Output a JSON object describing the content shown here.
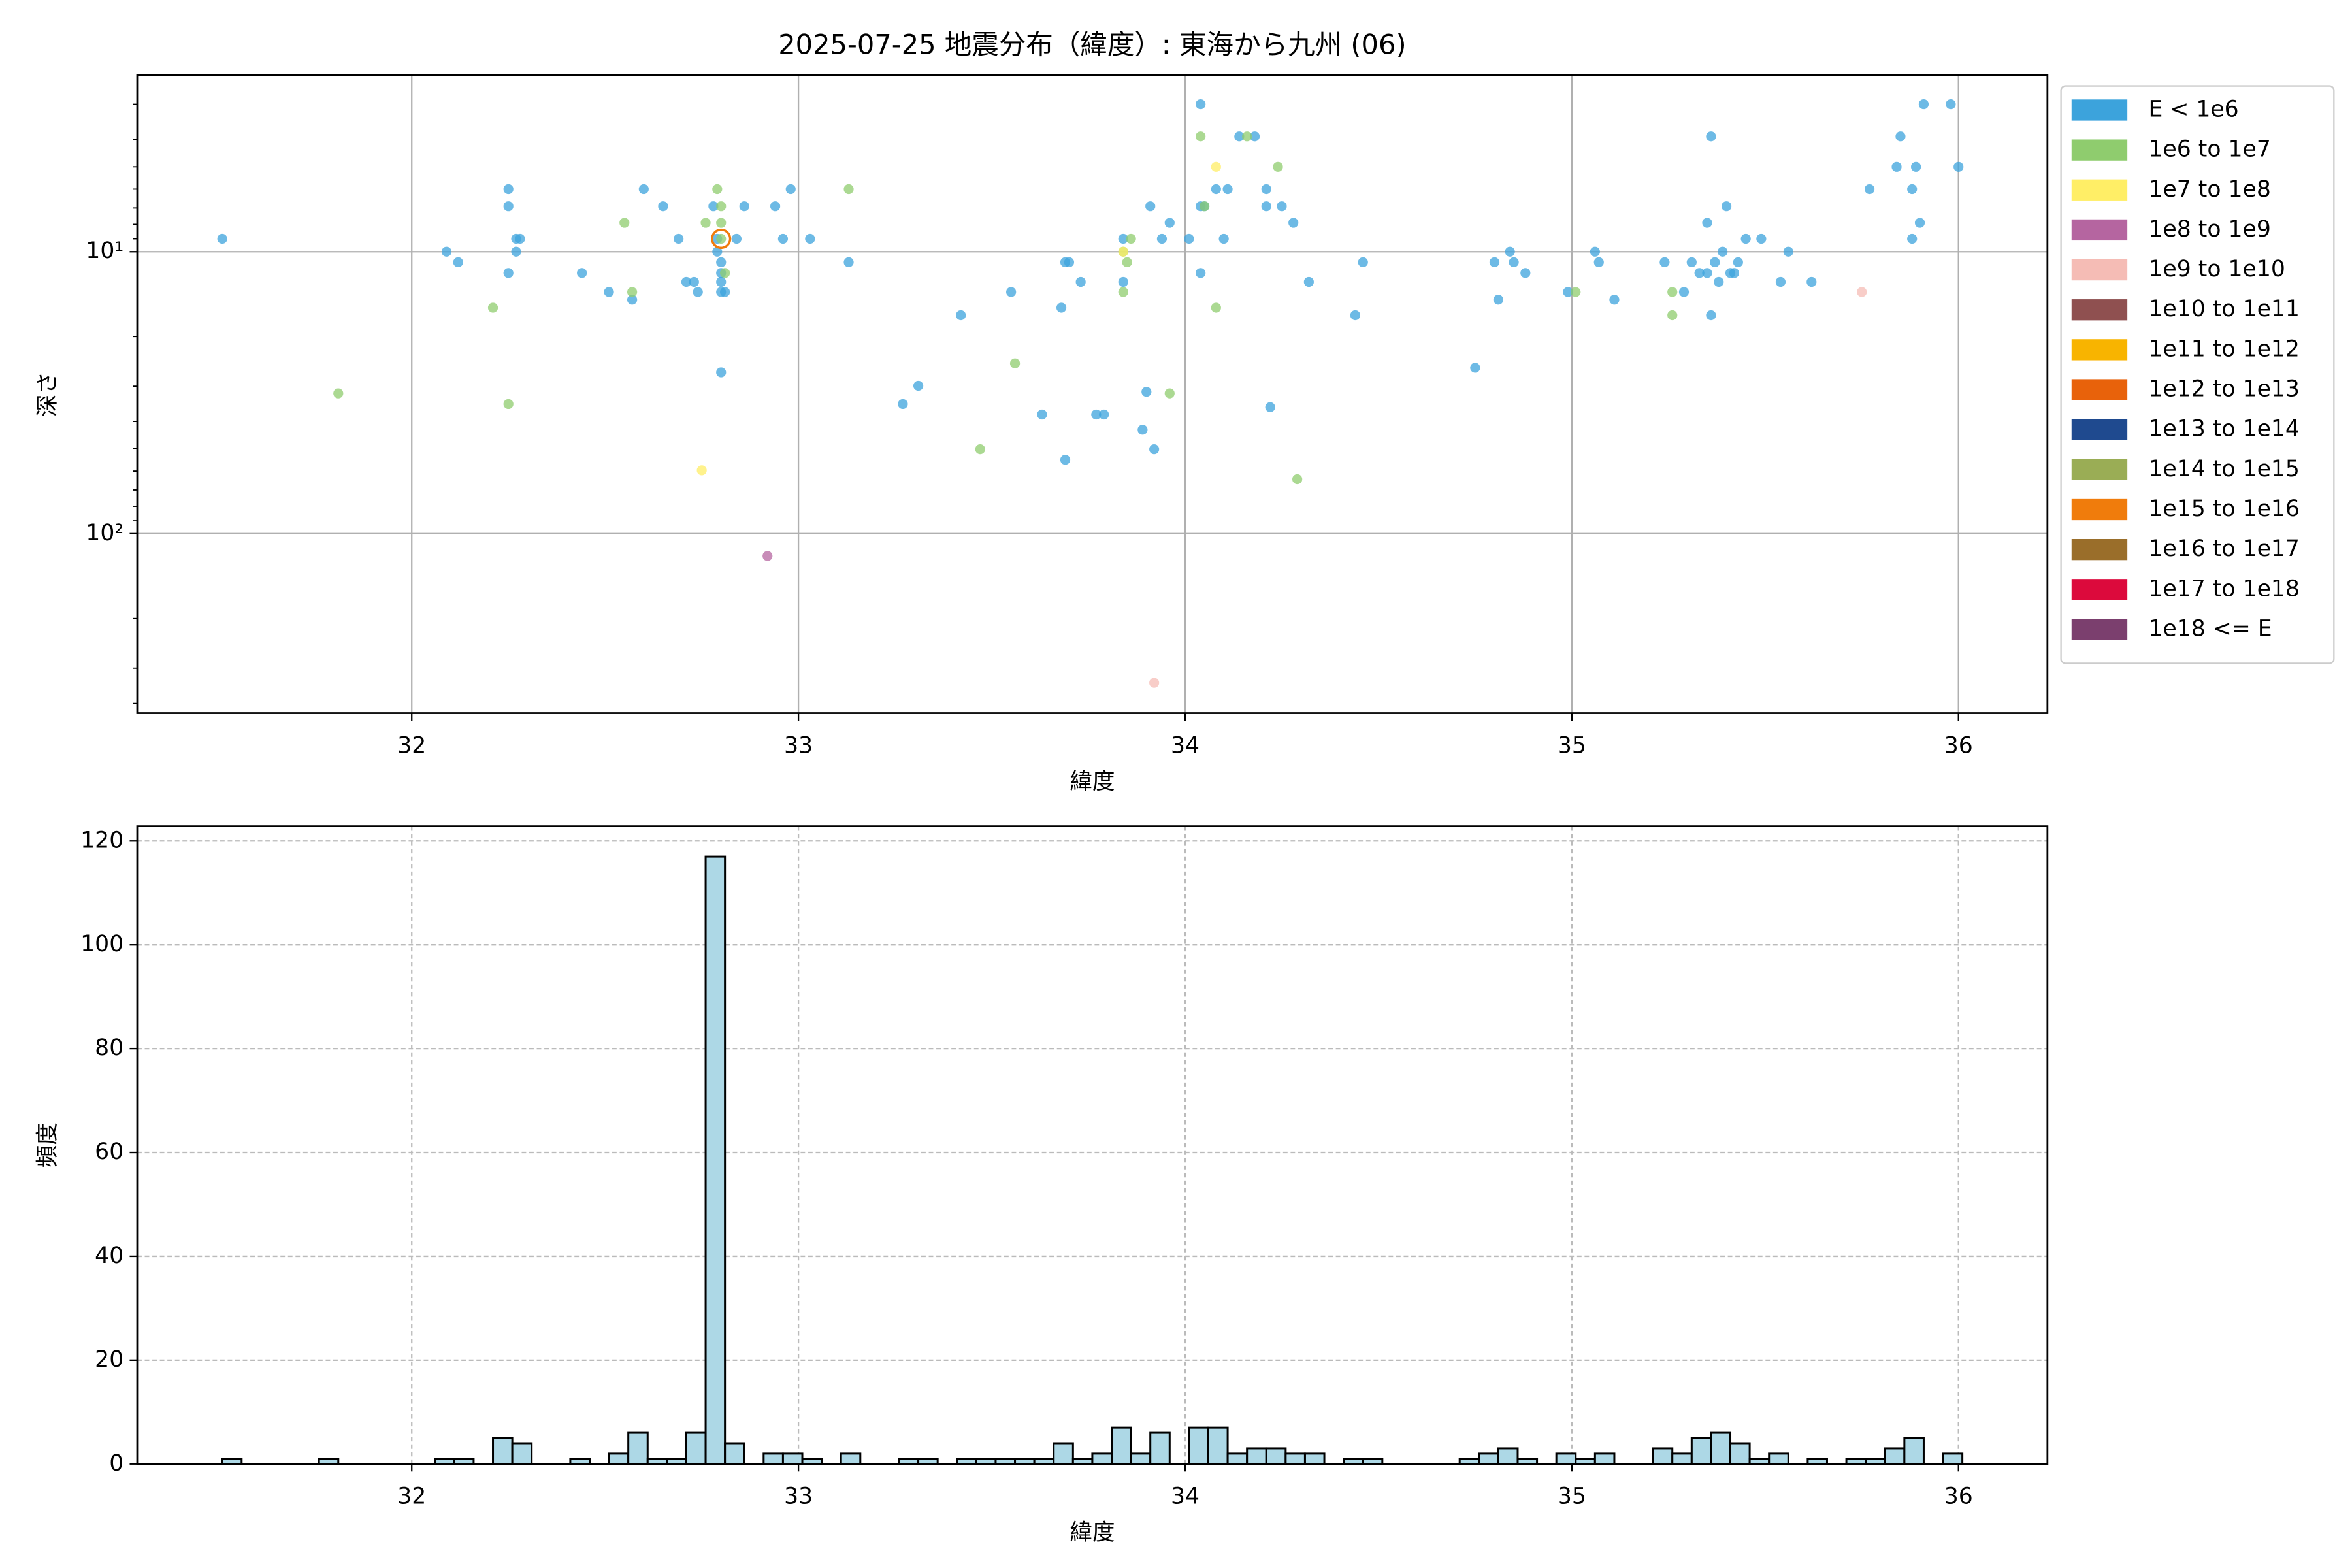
{
  "chart_data": [
    {
      "type": "scatter",
      "title": "2025-07-25 地震分布（緯度）: 東海から九州 (06)",
      "xlabel": "緯度",
      "ylabel": "深さ",
      "xlim": [
        31.29,
        36.23
      ],
      "ylim": [
        433,
        2.37
      ],
      "yscale": "log",
      "xticks": [
        32,
        33,
        34,
        35,
        36
      ],
      "yticks": [
        {
          "value": 10,
          "label": "10¹"
        },
        {
          "value": 100,
          "label": "10²"
        }
      ],
      "yminorticks": [
        3,
        4,
        5,
        6,
        7,
        8,
        9,
        20,
        30,
        40,
        50,
        60,
        70,
        80,
        90,
        200,
        300,
        400
      ],
      "grid": true,
      "grid_style": "solid",
      "legend": "outside upper right",
      "series": [
        {
          "name": "E < 1e6",
          "color": "#3ca3dc",
          "x": [
            31.51,
            32.09,
            32.12,
            32.25,
            32.25,
            32.27,
            32.28,
            32.27,
            32.25,
            32.44,
            32.51,
            32.57,
            32.6,
            32.65,
            32.69,
            32.71,
            32.73,
            32.74,
            32.78,
            32.79,
            32.79,
            32.8,
            32.8,
            32.8,
            32.8,
            32.81,
            32.8,
            32.86,
            32.84,
            32.94,
            32.98,
            32.96,
            33.03,
            33.13,
            33.27,
            33.31,
            33.42,
            33.55,
            33.68,
            33.69,
            33.7,
            33.73,
            33.63,
            33.69,
            33.77,
            33.79,
            33.89,
            33.84,
            33.84,
            33.9,
            33.91,
            33.92,
            33.94,
            33.96,
            34.01,
            34.04,
            34.04,
            34.04,
            34.05,
            34.08,
            34.11,
            34.1,
            34.14,
            34.18,
            34.21,
            34.21,
            34.25,
            34.28,
            34.22,
            34.32,
            34.44,
            34.46,
            34.75,
            34.8,
            34.81,
            34.84,
            34.85,
            34.88,
            34.99,
            35.06,
            35.07,
            35.11,
            35.24,
            35.29,
            35.31,
            35.33,
            35.35,
            35.35,
            35.36,
            35.37,
            35.36,
            35.38,
            35.4,
            35.39,
            35.41,
            35.43,
            35.42,
            35.45,
            35.49,
            35.56,
            35.54,
            35.62,
            35.77,
            35.84,
            35.85,
            35.88,
            35.88,
            35.9,
            35.91,
            35.89,
            35.98,
            36.0
          ],
          "values": [
            9.0,
            10,
            10.9,
            6.0,
            6.9,
            9.0,
            9.0,
            10,
            11.9,
            11.9,
            13.9,
            14.8,
            6.0,
            6.9,
            9.0,
            12.8,
            12.8,
            13.9,
            6.9,
            9.0,
            10,
            10.9,
            11.9,
            12.8,
            13.9,
            13.9,
            26.8,
            6.9,
            9.0,
            6.9,
            6.0,
            9.0,
            9.0,
            10.9,
            34.7,
            29.9,
            16.8,
            13.9,
            15.8,
            10.9,
            10.9,
            12.8,
            37.8,
            54.7,
            37.8,
            37.8,
            42.8,
            12.8,
            9.0,
            31.4,
            6.9,
            50.2,
            9.0,
            7.9,
            9.0,
            3.0,
            11.9,
            6.9,
            6.9,
            6.0,
            6.0,
            9.0,
            3.9,
            3.9,
            6.0,
            6.9,
            6.9,
            7.9,
            35.6,
            12.8,
            16.8,
            10.9,
            25.8,
            10.9,
            14.8,
            10,
            10.9,
            11.9,
            13.9,
            10,
            10.9,
            14.8,
            10.9,
            13.9,
            10.9,
            11.9,
            7.9,
            11.9,
            3.9,
            10.9,
            16.8,
            12.8,
            6.9,
            10,
            11.9,
            10.9,
            11.9,
            9.0,
            9.0,
            10,
            12.8,
            12.8,
            6.0,
            5.0,
            3.9,
            6.0,
            9.0,
            7.9,
            3.0,
            5.0,
            3.0,
            5.0
          ]
        },
        {
          "name": "1e6 to 1e7",
          "color": "#8fcc6e",
          "x": [
            31.81,
            32.21,
            32.25,
            32.55,
            32.57,
            32.76,
            32.79,
            32.8,
            32.8,
            32.8,
            32.81,
            33.13,
            33.47,
            33.56,
            33.84,
            33.84,
            33.85,
            33.86,
            33.96,
            34.04,
            34.05,
            34.08,
            34.16,
            34.24,
            34.29,
            35.01,
            35.26,
            35.26
          ],
          "values": [
            31.8,
            15.8,
            34.7,
            7.9,
            13.9,
            7.9,
            6.0,
            6.9,
            7.9,
            9.0,
            11.9,
            6.0,
            50.2,
            24.9,
            10,
            13.9,
            10.9,
            9.0,
            31.8,
            3.9,
            6.9,
            15.8,
            3.9,
            5.0,
            64.1,
            13.9,
            16.8,
            13.9
          ]
        },
        {
          "name": "1e7 to 1e8",
          "color": "#ffee66",
          "x": [
            32.75,
            34.08,
            33.84
          ],
          "values": [
            59.6,
            5.0,
            10
          ]
        },
        {
          "name": "1e8 to 1e9",
          "color": "#b565a0",
          "x": [
            32.92
          ],
          "values": [
            120
          ]
        },
        {
          "name": "1e9 to 1e10",
          "color": "#f5bcb5",
          "x": [
            33.92,
            35.75
          ],
          "values": [
            338,
            13.9
          ]
        },
        {
          "name": "1e10 to 1e11",
          "color": "#8f5050",
          "x": [],
          "values": []
        },
        {
          "name": "1e11 to 1e12",
          "color": "#f8b400",
          "x": [],
          "values": []
        },
        {
          "name": "1e12 to 1e13",
          "color": "#e8620b",
          "x": [],
          "values": []
        },
        {
          "name": "1e13 to 1e14",
          "color": "#1f4a8f",
          "x": [],
          "values": []
        },
        {
          "name": "1e14 to 1e15",
          "color": "#9aad55",
          "x": [],
          "values": []
        },
        {
          "name": "1e15 to 1e16",
          "color": "#f07c0c",
          "x": [
            32.8
          ],
          "values": [
            9.0
          ]
        },
        {
          "name": "1e16 to 1e17",
          "color": "#9a6e2a",
          "x": [],
          "values": []
        },
        {
          "name": "1e17 to 1e18",
          "color": "#dc0a3c",
          "x": [],
          "values": []
        },
        {
          "name": "1e18 <= E",
          "color": "#7b3f6e",
          "x": [],
          "values": []
        }
      ]
    },
    {
      "type": "histogram",
      "xlabel": "緯度",
      "ylabel": "頻度",
      "color": "#add8e6",
      "edgecolor": "#000000",
      "xlim": [
        31.29,
        36.23
      ],
      "ylim": [
        0,
        122.85
      ],
      "xticks": [
        32,
        33,
        34,
        35,
        36
      ],
      "yticks": [
        0,
        20,
        40,
        60,
        80,
        100,
        120
      ],
      "grid": true,
      "grid_style": "dashed",
      "bins": [
        31.51,
        31.56,
        31.61,
        31.66,
        31.71,
        31.76,
        31.81,
        31.86,
        31.91,
        31.96,
        32.01,
        32.06,
        32.11,
        32.16,
        32.21,
        32.26,
        32.31,
        32.36,
        32.41,
        32.46,
        32.51,
        32.56,
        32.61,
        32.66,
        32.71,
        32.76,
        32.81,
        32.86,
        32.91,
        32.96,
        33.01,
        33.06,
        33.11,
        33.16,
        33.21,
        33.26,
        33.31,
        33.36,
        33.41,
        33.46,
        33.51,
        33.56,
        33.61,
        33.66,
        33.71,
        33.76,
        33.81,
        33.86,
        33.91,
        33.96,
        34.01,
        34.06,
        34.11,
        34.16,
        34.21,
        34.26,
        34.31,
        34.36,
        34.41,
        34.46,
        34.51,
        34.56,
        34.61,
        34.66,
        34.71,
        34.76,
        34.81,
        34.86,
        34.91,
        34.96,
        35.01,
        35.06,
        35.11,
        35.16,
        35.21,
        35.26,
        35.31,
        35.36,
        35.41,
        35.46,
        35.51,
        35.56,
        35.61,
        35.66,
        35.71,
        35.76,
        35.81,
        35.86,
        35.91,
        35.96,
        36.01
      ],
      "values": [
        1,
        0,
        0,
        0,
        0,
        1,
        0,
        0,
        0,
        0,
        0,
        1,
        1,
        0,
        5,
        4,
        0,
        0,
        1,
        0,
        2,
        6,
        1,
        1,
        6,
        117,
        4,
        0,
        2,
        2,
        1,
        0,
        2,
        0,
        0,
        1,
        1,
        0,
        1,
        1,
        1,
        1,
        1,
        4,
        1,
        2,
        7,
        2,
        6,
        0,
        7,
        7,
        2,
        3,
        3,
        2,
        2,
        0,
        1,
        1,
        0,
        0,
        0,
        0,
        1,
        2,
        3,
        1,
        0,
        2,
        1,
        2,
        0,
        0,
        3,
        2,
        5,
        6,
        4,
        1,
        2,
        0,
        1,
        0,
        1,
        1,
        3,
        5,
        0,
        2
      ]
    }
  ]
}
